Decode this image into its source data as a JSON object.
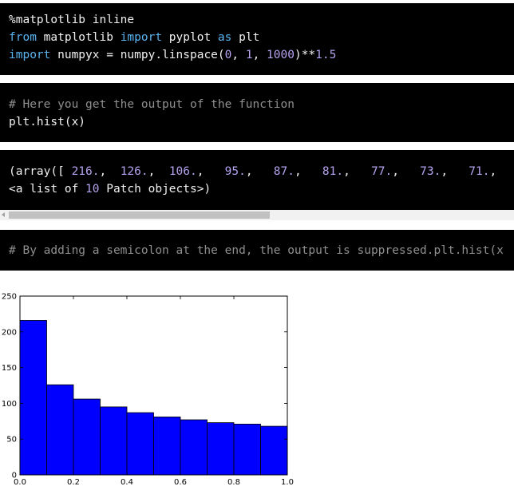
{
  "cell1": {
    "line1": "%matplotlib inline",
    "line2_kw1": "from",
    "line2_mod": " matplotlib ",
    "line2_kw2": "import",
    "line2_name": " pyplot ",
    "line2_kw3": "as",
    "line2_alias": " plt",
    "line3_kw": "import",
    "line3_code": " numpyx = numpy.linspace(",
    "line3_n1": "0",
    "line3_sep1": ", ",
    "line3_n2": "1",
    "line3_sep2": ", ",
    "line3_n3": "1000",
    "line3_pow": ")**",
    "line3_n4": "1.5"
  },
  "cell2": {
    "comment": "# Here you get the output of the function",
    "code": "plt.hist(x)"
  },
  "output": {
    "prefix": "(array([",
    "values": [
      "216.",
      "126.",
      "106.",
      "95.",
      "87.",
      "81.",
      "77.",
      "73.",
      "71."
    ],
    "trail": ",",
    "line2_pre": "<a list of ",
    "line2_num": "10",
    "line2_post": " Patch objects>)"
  },
  "cell3": {
    "comment": "# By adding a semicolon at the end, the output is suppressed.plt.hist(x"
  },
  "chart_data": {
    "type": "bar",
    "bin_edges": [
      0.0,
      0.1,
      0.2,
      0.3,
      0.4,
      0.5,
      0.6,
      0.7,
      0.8,
      0.9,
      1.0
    ],
    "values": [
      216,
      126,
      106,
      95,
      87,
      81,
      77,
      73,
      71,
      68
    ],
    "xlim": [
      0.0,
      1.0
    ],
    "ylim": [
      0,
      250
    ],
    "xticks": [
      "0.0",
      "0.2",
      "0.4",
      "0.6",
      "0.8",
      "1.0"
    ],
    "yticks": [
      "0",
      "50",
      "100",
      "150",
      "200",
      "250"
    ],
    "bar_color": "#0000ff",
    "grid": false
  }
}
